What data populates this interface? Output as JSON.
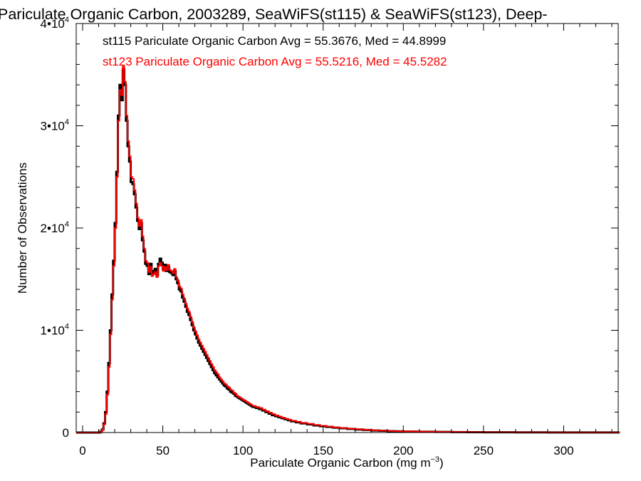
{
  "chart_data": {
    "type": "line",
    "title": "Pariculate Organic Carbon, 2003289, SeaWiFS(st115) & SeaWiFS(st123), Deep-",
    "xlabel_main": "Pariculate Organic Carbon (mg m",
    "xlabel_sup": "−3",
    "xlabel_close": ")",
    "ylabel": "Number of Observations",
    "xlim": [
      -4,
      334
    ],
    "ylim": [
      0,
      40000
    ],
    "x_ticks": [
      {
        "value": 0,
        "label": "0"
      },
      {
        "value": 50,
        "label": "50"
      },
      {
        "value": 100,
        "label": "100"
      },
      {
        "value": 150,
        "label": "150"
      },
      {
        "value": 200,
        "label": "200"
      },
      {
        "value": 250,
        "label": "250"
      },
      {
        "value": 300,
        "label": "300"
      }
    ],
    "y_ticks": [
      {
        "value": 0,
        "base": "0",
        "exp": ""
      },
      {
        "value": 10000,
        "base": "1•10",
        "exp": "4"
      },
      {
        "value": 20000,
        "base": "2•10",
        "exp": "4"
      },
      {
        "value": 30000,
        "base": "3•10",
        "exp": "4"
      },
      {
        "value": 40000,
        "base": "4•10",
        "exp": "4"
      }
    ],
    "grid": false,
    "legend_position": "top-left",
    "bin_width": 1,
    "series": [
      {
        "name": "st115",
        "color": "#000000",
        "label": "st115 Pariculate Organic Carbon Avg = 55.3676, Med = 44.8999",
        "points": [
          [
            -4,
            0
          ],
          [
            10,
            0
          ],
          [
            11,
            100
          ],
          [
            12,
            300
          ],
          [
            13,
            900
          ],
          [
            14,
            2000
          ],
          [
            15,
            4000
          ],
          [
            16,
            6800
          ],
          [
            17,
            10000
          ],
          [
            18,
            13500
          ],
          [
            19,
            16800
          ],
          [
            20,
            20500
          ],
          [
            21,
            25500
          ],
          [
            22,
            31000
          ],
          [
            23,
            34000
          ],
          [
            24,
            32500
          ],
          [
            25,
            35500
          ],
          [
            26,
            34000
          ],
          [
            27,
            30500
          ],
          [
            28,
            28000
          ],
          [
            29,
            26500
          ],
          [
            30,
            24500
          ],
          [
            31,
            24300
          ],
          [
            32,
            23300
          ],
          [
            33,
            22000
          ],
          [
            34,
            20700
          ],
          [
            35,
            19900
          ],
          [
            36,
            20500
          ],
          [
            37,
            18800
          ],
          [
            38,
            17700
          ],
          [
            39,
            16500
          ],
          [
            40,
            16300
          ],
          [
            41,
            15500
          ],
          [
            42,
            16500
          ],
          [
            43,
            15500
          ],
          [
            44,
            15800
          ],
          [
            45,
            16000
          ],
          [
            46,
            15400
          ],
          [
            47,
            16500
          ],
          [
            48,
            17000
          ],
          [
            49,
            16600
          ],
          [
            50,
            16000
          ],
          [
            51,
            16400
          ],
          [
            52,
            15800
          ],
          [
            53,
            16200
          ],
          [
            54,
            15700
          ],
          [
            55,
            15600
          ],
          [
            56,
            15400
          ],
          [
            57,
            15800
          ],
          [
            58,
            15000
          ],
          [
            59,
            14600
          ],
          [
            60,
            14000
          ],
          [
            61,
            13800
          ],
          [
            62,
            13200
          ],
          [
            63,
            12800
          ],
          [
            64,
            12300
          ],
          [
            65,
            11800
          ],
          [
            66,
            11500
          ],
          [
            67,
            11000
          ],
          [
            68,
            10500
          ],
          [
            69,
            10000
          ],
          [
            70,
            9600
          ],
          [
            71,
            9200
          ],
          [
            72,
            8800
          ],
          [
            73,
            8500
          ],
          [
            74,
            8200
          ],
          [
            75,
            7900
          ],
          [
            76,
            7600
          ],
          [
            77,
            7300
          ],
          [
            78,
            7000
          ],
          [
            79,
            6700
          ],
          [
            80,
            6400
          ],
          [
            81,
            6100
          ],
          [
            82,
            5800
          ],
          [
            83,
            5600
          ],
          [
            84,
            5400
          ],
          [
            85,
            5200
          ],
          [
            86,
            5000
          ],
          [
            87,
            4800
          ],
          [
            88,
            4600
          ],
          [
            89,
            4500
          ],
          [
            90,
            4300
          ],
          [
            91,
            4200
          ],
          [
            92,
            4000
          ],
          [
            93,
            3900
          ],
          [
            94,
            3800
          ],
          [
            95,
            3600
          ],
          [
            96,
            3500
          ],
          [
            97,
            3400
          ],
          [
            98,
            3300
          ],
          [
            99,
            3200
          ],
          [
            100,
            3100
          ],
          [
            101,
            3000
          ],
          [
            102,
            2900
          ],
          [
            103,
            2800
          ],
          [
            104,
            2700
          ],
          [
            105,
            2600
          ],
          [
            106,
            2500
          ],
          [
            108,
            2400
          ],
          [
            110,
            2300
          ],
          [
            112,
            2150
          ],
          [
            114,
            2000
          ],
          [
            116,
            1850
          ],
          [
            118,
            1700
          ],
          [
            120,
            1600
          ],
          [
            122,
            1500
          ],
          [
            124,
            1400
          ],
          [
            126,
            1300
          ],
          [
            128,
            1200
          ],
          [
            130,
            1100
          ],
          [
            133,
            1000
          ],
          [
            136,
            900
          ],
          [
            140,
            800
          ],
          [
            144,
            700
          ],
          [
            148,
            620
          ],
          [
            152,
            550
          ],
          [
            156,
            480
          ],
          [
            160,
            420
          ],
          [
            165,
            360
          ],
          [
            170,
            300
          ],
          [
            175,
            250
          ],
          [
            180,
            200
          ],
          [
            185,
            170
          ],
          [
            190,
            140
          ],
          [
            195,
            120
          ],
          [
            200,
            100
          ],
          [
            210,
            80
          ],
          [
            220,
            60
          ],
          [
            230,
            45
          ],
          [
            240,
            35
          ],
          [
            250,
            25
          ],
          [
            270,
            15
          ],
          [
            290,
            10
          ],
          [
            310,
            5
          ],
          [
            334,
            5
          ]
        ]
      },
      {
        "name": "st123",
        "color": "#ff0000",
        "label": "st123 Pariculate Organic Carbon Avg = 55.5216, Med = 45.5282",
        "points": [
          [
            -4,
            0
          ],
          [
            10,
            0
          ],
          [
            11,
            80
          ],
          [
            12,
            250
          ],
          [
            13,
            800
          ],
          [
            14,
            1800
          ],
          [
            15,
            3700
          ],
          [
            16,
            6400
          ],
          [
            17,
            9600
          ],
          [
            18,
            13000
          ],
          [
            19,
            16300
          ],
          [
            20,
            20000
          ],
          [
            21,
            25000
          ],
          [
            22,
            30500
          ],
          [
            23,
            33500
          ],
          [
            24,
            33000
          ],
          [
            25,
            35800
          ],
          [
            26,
            34300
          ],
          [
            27,
            31000
          ],
          [
            28,
            28500
          ],
          [
            29,
            27000
          ],
          [
            30,
            25000
          ],
          [
            31,
            24800
          ],
          [
            32,
            23700
          ],
          [
            33,
            22400
          ],
          [
            34,
            21000
          ],
          [
            35,
            20200
          ],
          [
            36,
            20800
          ],
          [
            37,
            19200
          ],
          [
            38,
            18000
          ],
          [
            39,
            16800
          ],
          [
            40,
            16600
          ],
          [
            41,
            15700
          ],
          [
            42,
            16200
          ],
          [
            43,
            15300
          ],
          [
            44,
            15500
          ],
          [
            45,
            15700
          ],
          [
            46,
            15200
          ],
          [
            47,
            16300
          ],
          [
            48,
            16600
          ],
          [
            49,
            16300
          ],
          [
            50,
            15800
          ],
          [
            51,
            16200
          ],
          [
            52,
            15900
          ],
          [
            53,
            16400
          ],
          [
            54,
            15900
          ],
          [
            55,
            15800
          ],
          [
            56,
            15600
          ],
          [
            57,
            16000
          ],
          [
            58,
            15200
          ],
          [
            59,
            14900
          ],
          [
            60,
            14300
          ],
          [
            61,
            14100
          ],
          [
            62,
            13500
          ],
          [
            63,
            13100
          ],
          [
            64,
            12600
          ],
          [
            65,
            12100
          ],
          [
            66,
            11800
          ],
          [
            67,
            11300
          ],
          [
            68,
            10800
          ],
          [
            69,
            10300
          ],
          [
            70,
            9900
          ],
          [
            71,
            9500
          ],
          [
            72,
            9100
          ],
          [
            73,
            8800
          ],
          [
            74,
            8500
          ],
          [
            75,
            8200
          ],
          [
            76,
            7900
          ],
          [
            77,
            7600
          ],
          [
            78,
            7300
          ],
          [
            79,
            7000
          ],
          [
            80,
            6700
          ],
          [
            81,
            6400
          ],
          [
            82,
            6100
          ],
          [
            83,
            5900
          ],
          [
            84,
            5700
          ],
          [
            85,
            5400
          ],
          [
            86,
            5200
          ],
          [
            87,
            5000
          ],
          [
            88,
            4800
          ],
          [
            89,
            4700
          ],
          [
            90,
            4500
          ],
          [
            91,
            4400
          ],
          [
            92,
            4200
          ],
          [
            93,
            4100
          ],
          [
            94,
            3900
          ],
          [
            95,
            3800
          ],
          [
            96,
            3600
          ],
          [
            97,
            3500
          ],
          [
            98,
            3400
          ],
          [
            99,
            3300
          ],
          [
            100,
            3200
          ],
          [
            101,
            3100
          ],
          [
            102,
            3000
          ],
          [
            103,
            2900
          ],
          [
            104,
            2800
          ],
          [
            105,
            2700
          ],
          [
            106,
            2600
          ],
          [
            108,
            2500
          ],
          [
            110,
            2400
          ],
          [
            112,
            2250
          ],
          [
            114,
            2100
          ],
          [
            116,
            1950
          ],
          [
            118,
            1800
          ],
          [
            120,
            1680
          ],
          [
            122,
            1570
          ],
          [
            124,
            1460
          ],
          [
            126,
            1360
          ],
          [
            128,
            1260
          ],
          [
            130,
            1160
          ],
          [
            133,
            1060
          ],
          [
            136,
            950
          ],
          [
            140,
            850
          ],
          [
            144,
            750
          ],
          [
            148,
            660
          ],
          [
            152,
            580
          ],
          [
            156,
            510
          ],
          [
            160,
            440
          ],
          [
            165,
            380
          ],
          [
            170,
            320
          ],
          [
            175,
            270
          ],
          [
            180,
            220
          ],
          [
            185,
            180
          ],
          [
            190,
            150
          ],
          [
            195,
            130
          ],
          [
            200,
            110
          ],
          [
            210,
            85
          ],
          [
            220,
            65
          ],
          [
            230,
            50
          ],
          [
            240,
            38
          ],
          [
            250,
            28
          ],
          [
            270,
            18
          ],
          [
            290,
            12
          ],
          [
            310,
            6
          ],
          [
            334,
            6
          ]
        ]
      }
    ]
  }
}
